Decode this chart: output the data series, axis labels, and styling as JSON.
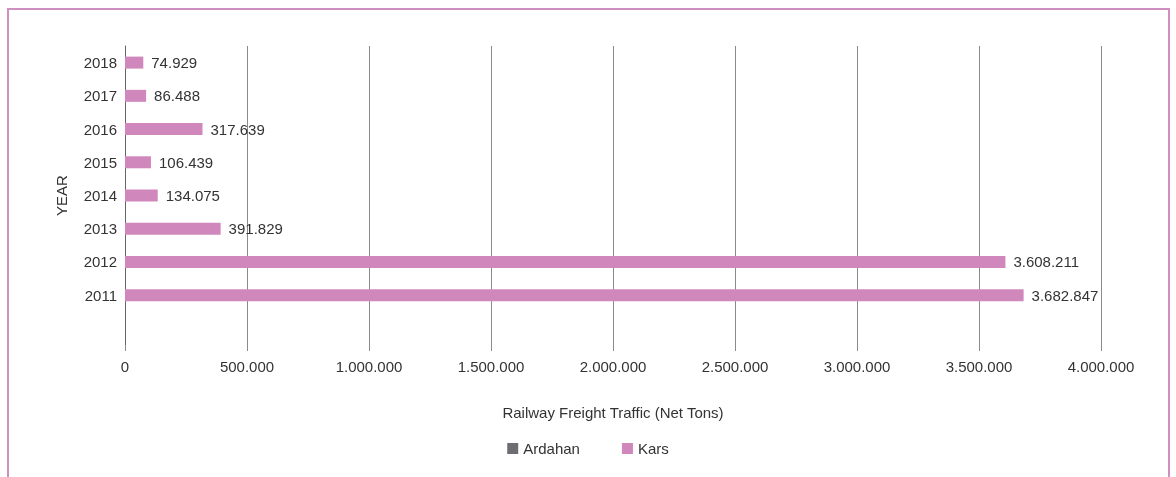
{
  "chart_data": {
    "type": "bar",
    "orientation": "horizontal",
    "categories": [
      "2018",
      "2017",
      "2016",
      "2015",
      "2014",
      "2013",
      "2012",
      "2011",
      null
    ],
    "series": [
      {
        "name": "Ardahan",
        "color": "#6d6e72",
        "values": [
          null,
          null,
          null,
          null,
          null,
          null,
          null,
          null,
          null
        ]
      },
      {
        "name": "Kars",
        "color": "#d087bb",
        "values": [
          74929,
          86488,
          317639,
          106439,
          134075,
          391829,
          3608211,
          3682847,
          null
        ],
        "value_labels": [
          "74.929",
          "86.488",
          "317.639",
          "106.439",
          "134.075",
          "391.829",
          "3.608.211",
          "3.682.847",
          null
        ]
      }
    ],
    "xlabel": "Railway Freight Traffic (Net Tons)",
    "ylabel": "YEAR",
    "xlim": [
      0,
      4000000
    ],
    "xticks": [
      0,
      {
        "value": 500000,
        "label": "500.000"
      },
      {
        "value": 1000000,
        "label": "1.000.000"
      },
      {
        "value": 1500000,
        "label": "1.500.000"
      },
      {
        "value": 2000000,
        "label": "2.000.000"
      },
      {
        "value": 2500000,
        "label": "2.500.000"
      },
      {
        "value": 3000000,
        "label": "3.000.000"
      },
      {
        "value": 3500000,
        "label": "3.500.000"
      },
      {
        "value": 4000000,
        "label": "4.000.000"
      }
    ],
    "grid": "x",
    "legend": "bottom"
  }
}
